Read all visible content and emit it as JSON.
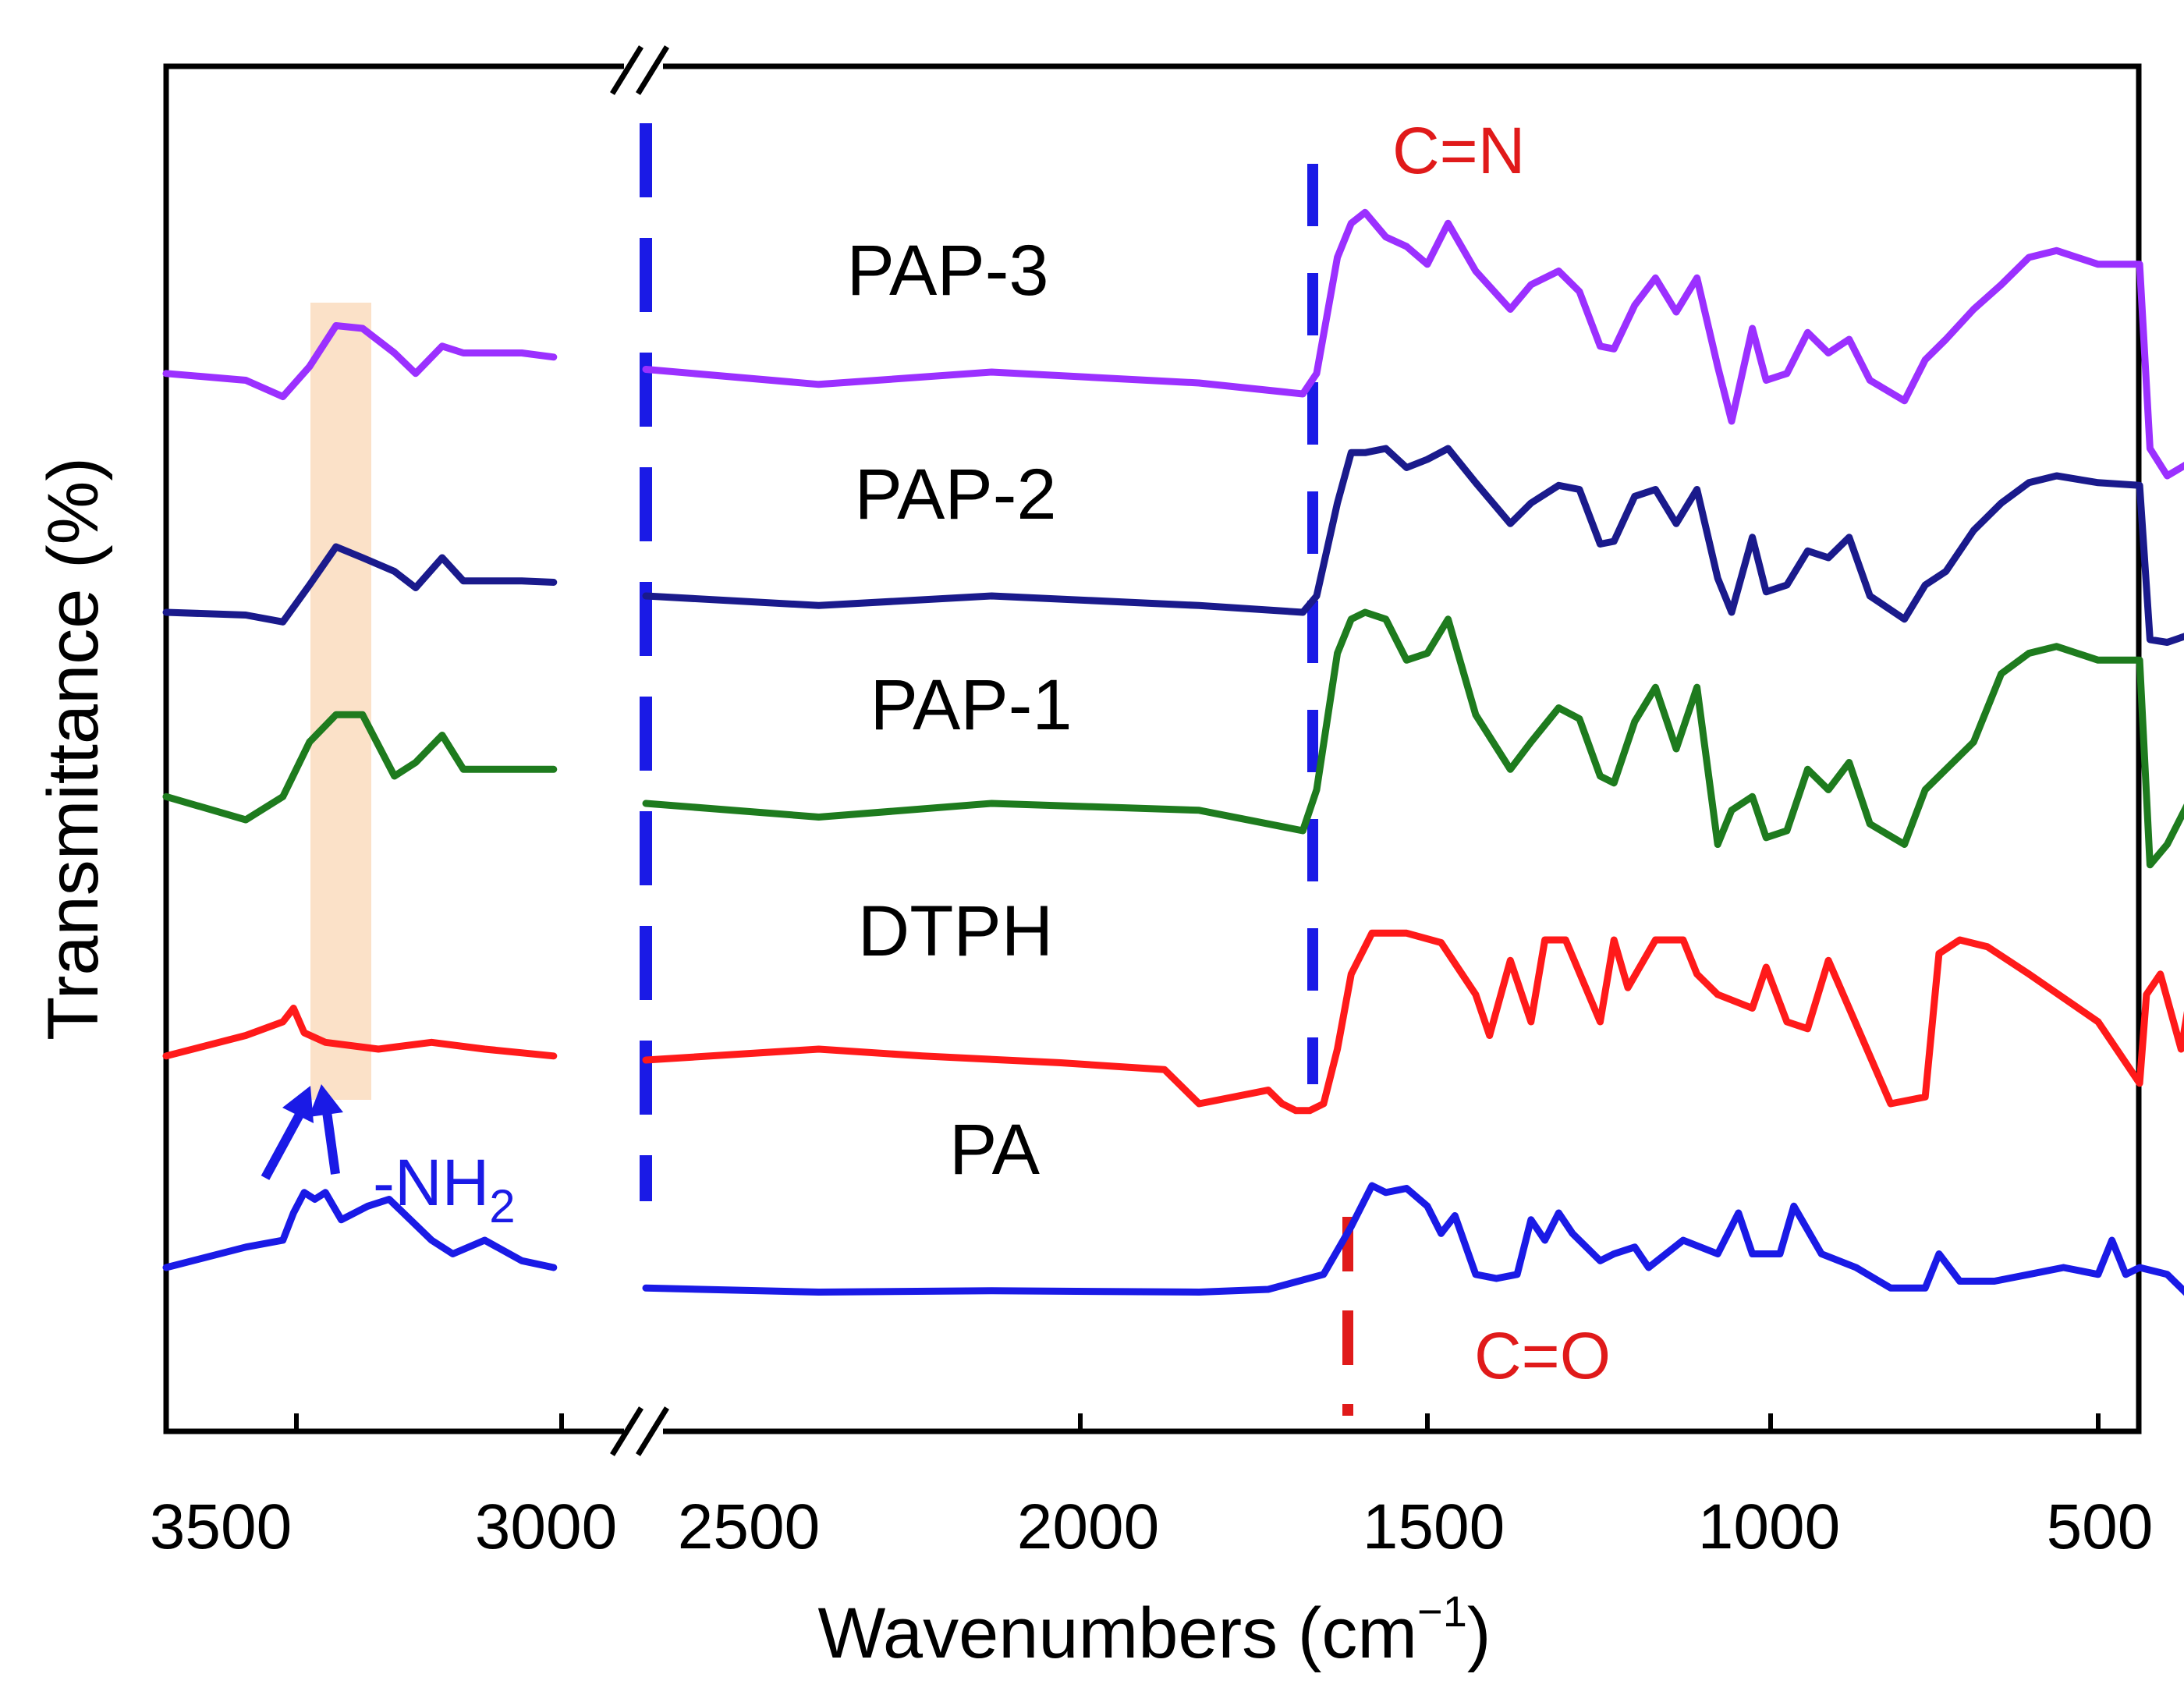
{
  "chart_data": {
    "type": "line",
    "xlabel": "Wavenumbers (cm",
    "xlabel_sup": "−1",
    "xlabel_close": ")",
    "ylabel": "Transmittance (%)",
    "x_break": [
      2850,
      2700
    ],
    "xlim": [
      3600,
      420
    ],
    "x_ticks": [
      "3500",
      "3000",
      "2500",
      "2000",
      "1500",
      "1000",
      "500"
    ],
    "series": [
      {
        "name": "PAP-3",
        "color": "#9b30ff",
        "x": [
          3600,
          3450,
          3380,
          3330,
          3280,
          3230,
          3170,
          3130,
          3080,
          3040,
          3000,
          2930,
          2870,
          2700,
          2450,
          2200,
          1900,
          1750,
          1730,
          1700,
          1680,
          1660,
          1630,
          1600,
          1570,
          1540,
          1500,
          1450,
          1420,
          1380,
          1350,
          1320,
          1300,
          1270,
          1240,
          1210,
          1180,
          1150,
          1130,
          1100,
          1080,
          1050,
          1020,
          990,
          960,
          930,
          880,
          850,
          820,
          780,
          740,
          700,
          660,
          600,
          540,
          525,
          500,
          460,
          430
        ],
        "y": [
          0.775,
          0.77,
          0.758,
          0.78,
          0.81,
          0.808,
          0.79,
          0.775,
          0.795,
          0.79,
          0.79,
          0.79,
          0.787,
          0.778,
          0.767,
          0.776,
          0.768,
          0.76,
          0.775,
          0.86,
          0.885,
          0.893,
          0.875,
          0.868,
          0.855,
          0.885,
          0.85,
          0.822,
          0.84,
          0.85,
          0.835,
          0.795,
          0.793,
          0.825,
          0.845,
          0.82,
          0.845,
          0.78,
          0.74,
          0.808,
          0.77,
          0.775,
          0.805,
          0.79,
          0.8,
          0.77,
          0.755,
          0.785,
          0.8,
          0.822,
          0.84,
          0.86,
          0.865,
          0.855,
          0.855,
          0.72,
          0.7,
          0.712,
          0.72
        ]
      },
      {
        "name": "PAP-2",
        "color": "#1a1a8c",
        "x": [
          3600,
          3450,
          3380,
          3330,
          3280,
          3230,
          3170,
          3130,
          3080,
          3040,
          3000,
          2930,
          2870,
          2700,
          2450,
          2200,
          1900,
          1750,
          1730,
          1700,
          1680,
          1660,
          1630,
          1600,
          1570,
          1540,
          1500,
          1450,
          1420,
          1380,
          1350,
          1320,
          1300,
          1270,
          1240,
          1210,
          1180,
          1150,
          1130,
          1100,
          1080,
          1050,
          1020,
          990,
          960,
          930,
          880,
          850,
          820,
          780,
          740,
          700,
          660,
          600,
          540,
          525,
          500,
          460,
          430
        ],
        "y": [
          0.6,
          0.598,
          0.593,
          0.62,
          0.648,
          0.64,
          0.63,
          0.618,
          0.64,
          0.623,
          0.623,
          0.623,
          0.622,
          0.612,
          0.605,
          0.612,
          0.605,
          0.6,
          0.612,
          0.68,
          0.717,
          0.717,
          0.72,
          0.706,
          0.712,
          0.72,
          0.695,
          0.665,
          0.68,
          0.693,
          0.69,
          0.65,
          0.652,
          0.685,
          0.69,
          0.665,
          0.69,
          0.625,
          0.6,
          0.655,
          0.615,
          0.62,
          0.645,
          0.64,
          0.655,
          0.612,
          0.595,
          0.62,
          0.63,
          0.66,
          0.68,
          0.695,
          0.7,
          0.695,
          0.693,
          0.58,
          0.578,
          0.585,
          0.585
        ]
      },
      {
        "name": "PAP-1",
        "color": "#1e7b1e",
        "x": [
          3600,
          3450,
          3380,
          3330,
          3280,
          3230,
          3170,
          3130,
          3080,
          3040,
          3000,
          2930,
          2870,
          2700,
          2450,
          2200,
          1900,
          1750,
          1730,
          1700,
          1680,
          1660,
          1630,
          1600,
          1570,
          1540,
          1500,
          1450,
          1420,
          1380,
          1350,
          1320,
          1300,
          1270,
          1240,
          1210,
          1180,
          1150,
          1130,
          1100,
          1080,
          1050,
          1020,
          990,
          960,
          930,
          880,
          850,
          820,
          780,
          740,
          700,
          660,
          600,
          540,
          525,
          500,
          460,
          430
        ],
        "y": [
          0.465,
          0.448,
          0.465,
          0.505,
          0.525,
          0.525,
          0.48,
          0.49,
          0.51,
          0.485,
          0.485,
          0.485,
          0.485,
          0.46,
          0.45,
          0.46,
          0.455,
          0.44,
          0.47,
          0.57,
          0.595,
          0.6,
          0.595,
          0.565,
          0.57,
          0.595,
          0.525,
          0.485,
          0.505,
          0.53,
          0.522,
          0.48,
          0.475,
          0.52,
          0.545,
          0.5,
          0.545,
          0.43,
          0.455,
          0.465,
          0.435,
          0.44,
          0.485,
          0.47,
          0.49,
          0.445,
          0.43,
          0.47,
          0.485,
          0.505,
          0.555,
          0.57,
          0.575,
          0.565,
          0.565,
          0.415,
          0.43,
          0.47,
          0.47
        ]
      },
      {
        "name": "DTPH",
        "color": "#ff1a1a",
        "x": [
          3600,
          3450,
          3380,
          3360,
          3340,
          3300,
          3200,
          3100,
          3000,
          2870,
          2700,
          2450,
          2300,
          2100,
          1950,
          1900,
          1850,
          1800,
          1780,
          1760,
          1740,
          1720,
          1700,
          1680,
          1650,
          1600,
          1550,
          1500,
          1480,
          1450,
          1420,
          1400,
          1370,
          1320,
          1300,
          1280,
          1240,
          1200,
          1180,
          1150,
          1100,
          1080,
          1050,
          1020,
          990,
          900,
          850,
          830,
          800,
          760,
          730,
          700,
          600,
          540,
          530,
          510,
          480,
          460,
          430
        ],
        "y": [
          0.275,
          0.29,
          0.3,
          0.31,
          0.292,
          0.285,
          0.28,
          0.285,
          0.28,
          0.275,
          0.272,
          0.28,
          0.275,
          0.27,
          0.265,
          0.24,
          0.245,
          0.25,
          0.24,
          0.235,
          0.235,
          0.24,
          0.28,
          0.335,
          0.365,
          0.365,
          0.358,
          0.32,
          0.29,
          0.345,
          0.3,
          0.36,
          0.36,
          0.3,
          0.36,
          0.325,
          0.36,
          0.36,
          0.335,
          0.32,
          0.31,
          0.34,
          0.3,
          0.295,
          0.345,
          0.24,
          0.245,
          0.35,
          0.36,
          0.355,
          0.345,
          0.335,
          0.3,
          0.255,
          0.32,
          0.335,
          0.28,
          0.34,
          0.25
        ]
      },
      {
        "name": "PA",
        "color": "#1a1ae6",
        "x": [
          3600,
          3450,
          3380,
          3360,
          3340,
          3320,
          3300,
          3270,
          3220,
          3180,
          3100,
          3060,
          3000,
          2930,
          2870,
          2700,
          2450,
          2200,
          1900,
          1800,
          1720,
          1680,
          1650,
          1630,
          1600,
          1570,
          1550,
          1530,
          1500,
          1470,
          1440,
          1420,
          1400,
          1380,
          1360,
          1320,
          1300,
          1270,
          1250,
          1200,
          1150,
          1120,
          1100,
          1060,
          1040,
          1000,
          950,
          900,
          850,
          830,
          800,
          750,
          700,
          650,
          600,
          580,
          560,
          540,
          500,
          470,
          430
        ],
        "y": [
          0.12,
          0.135,
          0.14,
          0.16,
          0.175,
          0.17,
          0.175,
          0.155,
          0.165,
          0.17,
          0.14,
          0.13,
          0.14,
          0.125,
          0.12,
          0.105,
          0.102,
          0.103,
          0.102,
          0.104,
          0.115,
          0.15,
          0.18,
          0.175,
          0.178,
          0.165,
          0.145,
          0.158,
          0.115,
          0.112,
          0.115,
          0.155,
          0.14,
          0.16,
          0.145,
          0.125,
          0.13,
          0.135,
          0.12,
          0.14,
          0.13,
          0.16,
          0.13,
          0.13,
          0.165,
          0.13,
          0.12,
          0.105,
          0.105,
          0.13,
          0.11,
          0.11,
          0.115,
          0.12,
          0.115,
          0.14,
          0.115,
          0.12,
          0.115,
          0.1,
          0.095
        ]
      }
    ],
    "annotations": {
      "cn": "C=N",
      "co": "C=O",
      "nh2": "-NH",
      "nh2_sub": "2"
    }
  }
}
